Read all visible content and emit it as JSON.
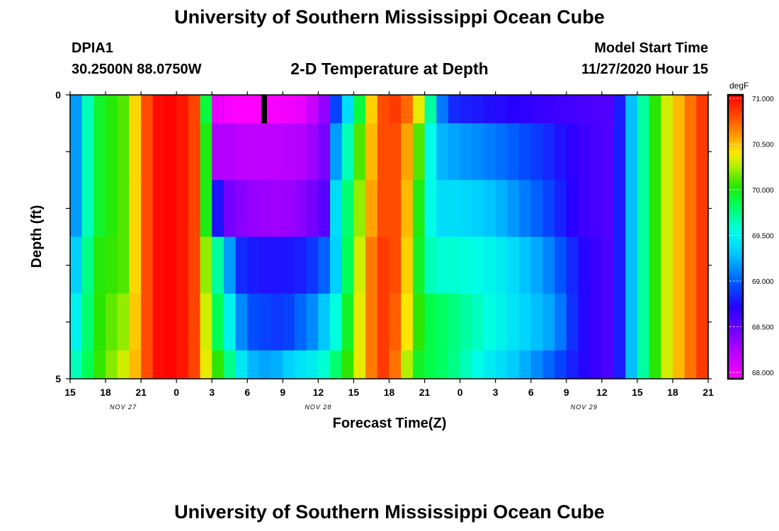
{
  "page": {
    "title_top": "University of Southern Mississippi Ocean Cube",
    "title_bottom": "University of Southern Mississippi Ocean Cube",
    "station": "DPIA1",
    "coords": "30.2500N 88.0750W",
    "plot_title": "2-D Temperature at Depth",
    "model_label": "Model Start Time",
    "model_time": "11/27/2020 Hour 15"
  },
  "chart_data": {
    "type": "heatmap",
    "title": "2-D Temperature at Depth",
    "xlabel": "Forecast Time(Z)",
    "ylabel": "Depth (ft)",
    "x_ticks": [
      "15",
      "18",
      "21",
      "0",
      "3",
      "6",
      "9",
      "12",
      "15",
      "18",
      "21",
      "0",
      "3",
      "6",
      "9",
      "12",
      "15",
      "18",
      "21"
    ],
    "x_hours": [
      0,
      3,
      6,
      9,
      12,
      15,
      18,
      21,
      24,
      27,
      30,
      33,
      36,
      39,
      42,
      45,
      48,
      51,
      54
    ],
    "date_labels": [
      {
        "text": "NOV 27",
        "hour": 4.5
      },
      {
        "text": "NOV 28",
        "hour": 21
      },
      {
        "text": "NOV 29",
        "hour": 43.5
      }
    ],
    "y_ticks": [
      "0",
      "5"
    ],
    "ylim": [
      0,
      5
    ],
    "xlim_hours": [
      0,
      54
    ],
    "colorbar": {
      "unit": "degF",
      "range": [
        68.0,
        71.0
      ],
      "tick_labels": [
        "71.000",
        "70.500",
        "70.000",
        "69.500",
        "69.000",
        "68.500",
        "68.000"
      ],
      "tick_values": [
        71.0,
        70.5,
        70.0,
        69.5,
        69.0,
        68.5,
        68.0
      ]
    },
    "layers": [
      {
        "depth_top": 0,
        "depth_bottom": 0.5,
        "keys": [
          [
            0,
            69.0
          ],
          [
            1,
            69.4
          ],
          [
            2,
            69.9
          ],
          [
            4.5,
            70.1
          ],
          [
            6,
            70.6
          ],
          [
            7,
            70.95
          ],
          [
            9,
            71.0
          ],
          [
            10.5,
            70.8
          ],
          [
            11,
            70.4
          ],
          [
            11.5,
            69.9
          ],
          [
            12,
            69.7
          ],
          [
            12.2,
            68.1
          ],
          [
            14,
            68.0
          ],
          [
            16,
            68.0
          ],
          [
            18.5,
            68.05
          ],
          [
            20,
            68.1
          ],
          [
            21.5,
            68.4
          ],
          [
            22,
            68.7
          ],
          [
            23,
            69.2
          ],
          [
            24,
            69.6
          ],
          [
            25,
            70.2
          ],
          [
            26,
            70.7
          ],
          [
            27,
            70.85
          ],
          [
            28,
            70.8
          ],
          [
            29,
            70.6
          ],
          [
            30,
            70.1
          ],
          [
            31,
            69.3
          ],
          [
            32,
            68.9
          ],
          [
            33,
            68.85
          ],
          [
            40,
            68.7
          ],
          [
            43,
            68.65
          ],
          [
            46,
            68.6
          ],
          [
            47.5,
            69.3
          ],
          [
            49,
            69.9
          ],
          [
            50.5,
            70.3
          ],
          [
            52,
            70.6
          ],
          [
            54,
            70.9
          ]
        ]
      },
      {
        "depth_top": 0.5,
        "depth_bottom": 1.5,
        "keys": [
          [
            0,
            69.0
          ],
          [
            1,
            69.4
          ],
          [
            2,
            69.9
          ],
          [
            4.5,
            70.1
          ],
          [
            6,
            70.6
          ],
          [
            7,
            70.95
          ],
          [
            9,
            71.0
          ],
          [
            10.5,
            70.8
          ],
          [
            11,
            70.4
          ],
          [
            11.5,
            70.0
          ],
          [
            12,
            69.7
          ],
          [
            12.3,
            68.3
          ],
          [
            15,
            68.25
          ],
          [
            18,
            68.25
          ],
          [
            20,
            68.3
          ],
          [
            21.6,
            68.5
          ],
          [
            22,
            69.0
          ],
          [
            23,
            69.4
          ],
          [
            24,
            69.9
          ],
          [
            25,
            70.3
          ],
          [
            26,
            70.7
          ],
          [
            27,
            70.85
          ],
          [
            28,
            70.7
          ],
          [
            29,
            70.4
          ],
          [
            30,
            69.8
          ],
          [
            31,
            69.3
          ],
          [
            33,
            69.2
          ],
          [
            36,
            69.1
          ],
          [
            40,
            68.9
          ],
          [
            43,
            68.7
          ],
          [
            46,
            68.6
          ],
          [
            47.5,
            69.3
          ],
          [
            49,
            69.9
          ],
          [
            50.5,
            70.3
          ],
          [
            52,
            70.6
          ],
          [
            54,
            70.9
          ]
        ]
      },
      {
        "depth_top": 1.5,
        "depth_bottom": 2.5,
        "keys": [
          [
            0,
            69.0
          ],
          [
            1,
            69.4
          ],
          [
            2,
            69.9
          ],
          [
            4.5,
            70.1
          ],
          [
            6,
            70.6
          ],
          [
            7,
            70.95
          ],
          [
            9,
            71.0
          ],
          [
            10.5,
            70.8
          ],
          [
            11,
            70.4
          ],
          [
            11.5,
            70.0
          ],
          [
            12,
            69.8
          ],
          [
            12.5,
            68.8
          ],
          [
            13.5,
            68.5
          ],
          [
            15,
            68.4
          ],
          [
            18,
            68.35
          ],
          [
            20,
            68.45
          ],
          [
            21.6,
            68.6
          ],
          [
            22,
            69.2
          ],
          [
            23,
            69.6
          ],
          [
            24,
            70.0
          ],
          [
            25,
            70.4
          ],
          [
            26,
            70.7
          ],
          [
            27,
            70.85
          ],
          [
            28,
            70.7
          ],
          [
            29,
            70.3
          ],
          [
            30,
            69.7
          ],
          [
            31,
            69.4
          ],
          [
            33,
            69.4
          ],
          [
            36,
            69.3
          ],
          [
            40,
            69.0
          ],
          [
            43,
            68.7
          ],
          [
            46,
            68.6
          ],
          [
            47.5,
            69.3
          ],
          [
            49,
            69.9
          ],
          [
            50.5,
            70.3
          ],
          [
            52,
            70.6
          ],
          [
            54,
            70.9
          ]
        ]
      },
      {
        "depth_top": 2.5,
        "depth_bottom": 3.5,
        "keys": [
          [
            0,
            69.2
          ],
          [
            1,
            69.5
          ],
          [
            2,
            70.0
          ],
          [
            4.5,
            70.1
          ],
          [
            6,
            70.6
          ],
          [
            7,
            70.95
          ],
          [
            9,
            71.0
          ],
          [
            10.5,
            70.8
          ],
          [
            11,
            70.5
          ],
          [
            11.5,
            70.2
          ],
          [
            12,
            69.9
          ],
          [
            13,
            69.5
          ],
          [
            14,
            68.9
          ],
          [
            16,
            68.8
          ],
          [
            18,
            68.8
          ],
          [
            20,
            68.85
          ],
          [
            22,
            69.1
          ],
          [
            23,
            69.6
          ],
          [
            24,
            70.1
          ],
          [
            25,
            70.5
          ],
          [
            26,
            70.8
          ],
          [
            27,
            70.85
          ],
          [
            28,
            70.7
          ],
          [
            29,
            70.2
          ],
          [
            30,
            69.7
          ],
          [
            31,
            69.6
          ],
          [
            33,
            69.6
          ],
          [
            36,
            69.5
          ],
          [
            40,
            69.2
          ],
          [
            43,
            68.8
          ],
          [
            46,
            68.6
          ],
          [
            47.5,
            69.3
          ],
          [
            49,
            69.9
          ],
          [
            50.5,
            70.3
          ],
          [
            52,
            70.6
          ],
          [
            54,
            70.9
          ]
        ]
      },
      {
        "depth_top": 3.5,
        "depth_bottom": 4.5,
        "keys": [
          [
            0,
            69.4
          ],
          [
            1,
            69.6
          ],
          [
            2,
            70.0
          ],
          [
            4.5,
            70.2
          ],
          [
            6,
            70.6
          ],
          [
            7,
            70.95
          ],
          [
            9,
            71.0
          ],
          [
            10.5,
            70.8
          ],
          [
            11,
            70.5
          ],
          [
            11.5,
            70.3
          ],
          [
            12,
            70.0
          ],
          [
            13,
            69.7
          ],
          [
            14,
            69.3
          ],
          [
            15,
            69.0
          ],
          [
            18,
            68.9
          ],
          [
            21,
            69.2
          ],
          [
            23,
            69.7
          ],
          [
            24,
            70.2
          ],
          [
            25,
            70.5
          ],
          [
            26,
            70.8
          ],
          [
            27,
            70.85
          ],
          [
            28,
            70.6
          ],
          [
            29,
            70.2
          ],
          [
            30,
            69.9
          ],
          [
            32,
            69.8
          ],
          [
            35,
            69.6
          ],
          [
            38,
            69.4
          ],
          [
            41,
            69.2
          ],
          [
            43,
            68.8
          ],
          [
            46,
            68.6
          ],
          [
            47.5,
            69.3
          ],
          [
            49,
            69.9
          ],
          [
            50.5,
            70.3
          ],
          [
            52,
            70.6
          ],
          [
            54,
            70.9
          ]
        ]
      },
      {
        "depth_top": 4.5,
        "depth_bottom": 5,
        "keys": [
          [
            0,
            69.6
          ],
          [
            1,
            69.7
          ],
          [
            2,
            70.0
          ],
          [
            4.5,
            70.3
          ],
          [
            6,
            70.6
          ],
          [
            7,
            70.95
          ],
          [
            9,
            71.0
          ],
          [
            10.5,
            70.8
          ],
          [
            11,
            70.5
          ],
          [
            12,
            70.2
          ],
          [
            13,
            69.9
          ],
          [
            14,
            69.6
          ],
          [
            15,
            69.3
          ],
          [
            17,
            69.2
          ],
          [
            19,
            69.4
          ],
          [
            21,
            69.5
          ],
          [
            23,
            69.9
          ],
          [
            24,
            70.2
          ],
          [
            25,
            70.5
          ],
          [
            26,
            70.8
          ],
          [
            27,
            70.85
          ],
          [
            28,
            70.5
          ],
          [
            29,
            70.0
          ],
          [
            30,
            69.9
          ],
          [
            32,
            69.8
          ],
          [
            35,
            69.5
          ],
          [
            38,
            69.3
          ],
          [
            41,
            69.0
          ],
          [
            43,
            68.8
          ],
          [
            46,
            68.6
          ],
          [
            47.5,
            69.3
          ],
          [
            49,
            69.9
          ],
          [
            50.5,
            70.3
          ],
          [
            52,
            70.6
          ],
          [
            54,
            70.9
          ]
        ]
      }
    ],
    "marker": {
      "hour": 16,
      "depth_top": 0,
      "depth_bottom": 0.5,
      "color": "#000000"
    }
  }
}
